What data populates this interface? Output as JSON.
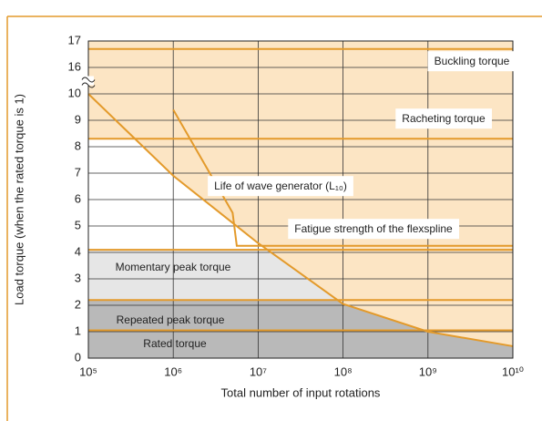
{
  "chart_data": {
    "type": "line",
    "x_label": "Total number of input rotations",
    "y_label": "Load torque (when the rated torque is 1)",
    "log_x": true,
    "grid": true,
    "xlim": [
      100000,
      10000000000
    ],
    "xticks": [
      {
        "value": 100000,
        "label": "10⁵"
      },
      {
        "value": 1000000,
        "label": "10⁶"
      },
      {
        "value": 10000000,
        "label": "10⁷"
      },
      {
        "value": 100000000,
        "label": "10⁸"
      },
      {
        "value": 1000000000,
        "label": "10⁹"
      },
      {
        "value": 10000000000,
        "label": "10¹⁰"
      }
    ],
    "ylim": [
      0,
      17
    ],
    "yticks": [
      0,
      1,
      2,
      3,
      4,
      5,
      6,
      7,
      8,
      9,
      10,
      16,
      17
    ],
    "y_break": [
      10,
      16
    ],
    "series": [
      {
        "name": "Life of wave generator (L₁₀)",
        "color": "#e39a2b",
        "x": [
          100000,
          1000000,
          10000000,
          100000000,
          1000000000,
          10000000000
        ],
        "values": [
          10,
          6.9,
          4.35,
          2.05,
          1.0,
          0.45
        ]
      },
      {
        "name": "Fatigue strength of the flexspline",
        "color": "#e39a2b",
        "x": [
          1000000,
          5000000,
          5600000,
          10000000000
        ],
        "values": [
          9.4,
          5.5,
          4.25,
          4.25
        ]
      },
      {
        "name": "Buckling torque",
        "color": "#e39a2b",
        "x": [
          100000,
          10000000000
        ],
        "values": [
          16.7,
          16.7
        ]
      },
      {
        "name": "Racheting torque",
        "color": "#e39a2b",
        "x": [
          100000,
          10000000000
        ],
        "values": [
          8.3,
          8.3
        ]
      },
      {
        "name": "Momentary peak torque",
        "color": "#e39a2b",
        "x": [
          100000,
          10000000000
        ],
        "values": [
          4.1,
          4.1
        ]
      },
      {
        "name": "Repeated peak torque",
        "color": "#e39a2b",
        "x": [
          100000,
          10000000000
        ],
        "values": [
          2.2,
          2.2
        ]
      },
      {
        "name": "Rated torque",
        "color": "#e39a2b",
        "x": [
          100000,
          10000000000
        ],
        "values": [
          1.05,
          1.05
        ]
      }
    ]
  }
}
